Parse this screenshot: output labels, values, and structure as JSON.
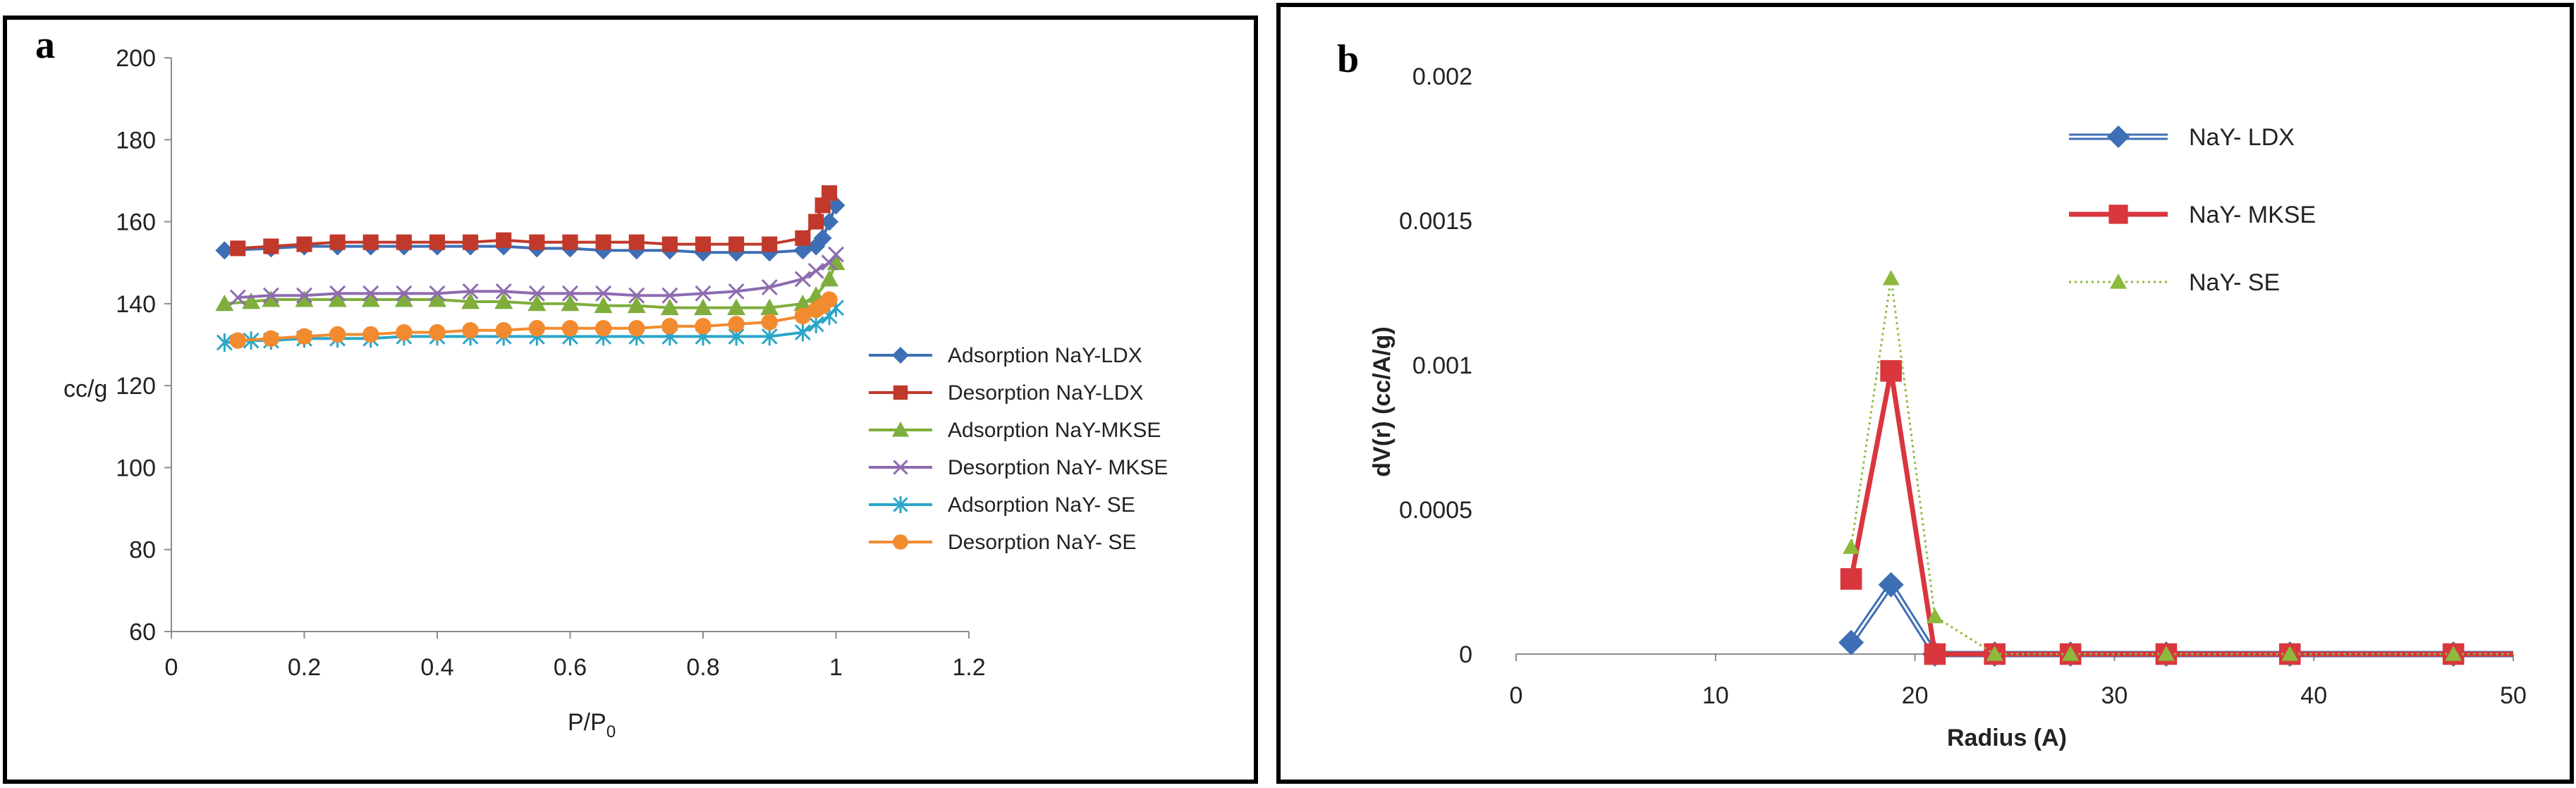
{
  "chart_data": [
    {
      "panel": "a",
      "type": "line",
      "title": "",
      "xlabel": "P/P",
      "xlabel_sub": "0",
      "ylabel": "cc/g",
      "xlim": [
        0,
        1.2
      ],
      "ylim": [
        60,
        200
      ],
      "xticks": [
        "0",
        "0.2",
        "0.4",
        "0.6",
        "0.8",
        "1",
        "1.2"
      ],
      "yticks": [
        "60",
        "80",
        "100",
        "120",
        "140",
        "160",
        "180",
        "200"
      ],
      "legend": "right",
      "series": [
        {
          "name": "Adsorption NaY-LDX",
          "color": "#3e6fb5",
          "marker": "diamond",
          "x": [
            0.08,
            0.15,
            0.2,
            0.25,
            0.3,
            0.35,
            0.4,
            0.45,
            0.5,
            0.55,
            0.6,
            0.65,
            0.7,
            0.75,
            0.8,
            0.85,
            0.9,
            0.95,
            0.97,
            0.98,
            0.99,
            1.0
          ],
          "y": [
            153,
            153.5,
            154,
            154,
            154,
            154,
            154,
            154,
            154,
            153.5,
            153.5,
            153,
            153,
            153,
            152.5,
            152.5,
            152.5,
            153,
            154,
            156,
            160,
            164
          ]
        },
        {
          "name": "Desorption NaY-LDX",
          "color": "#c0392b",
          "marker": "square",
          "x": [
            0.1,
            0.15,
            0.2,
            0.25,
            0.3,
            0.35,
            0.4,
            0.45,
            0.5,
            0.55,
            0.6,
            0.65,
            0.7,
            0.75,
            0.8,
            0.85,
            0.9,
            0.95,
            0.97,
            0.98,
            0.99
          ],
          "y": [
            153.5,
            154,
            154.5,
            155,
            155,
            155,
            155,
            155,
            155.5,
            155,
            155,
            155,
            155,
            154.5,
            154.5,
            154.5,
            154.5,
            156,
            160,
            164,
            167
          ]
        },
        {
          "name": "Adsorption NaY-MKSE",
          "color": "#7fae3c",
          "marker": "triangle",
          "x": [
            0.08,
            0.12,
            0.15,
            0.2,
            0.25,
            0.3,
            0.35,
            0.4,
            0.45,
            0.5,
            0.55,
            0.6,
            0.65,
            0.7,
            0.75,
            0.8,
            0.85,
            0.9,
            0.95,
            0.97,
            0.99,
            1.0
          ],
          "y": [
            140,
            140.5,
            141,
            141,
            141,
            141,
            141,
            141,
            140.5,
            140.5,
            140,
            140,
            139.5,
            139.5,
            139,
            139,
            139,
            139,
            140,
            142,
            146,
            150
          ]
        },
        {
          "name": "Desorption NaY- MKSE",
          "color": "#8e6bb0",
          "marker": "x",
          "x": [
            0.1,
            0.15,
            0.2,
            0.25,
            0.3,
            0.35,
            0.4,
            0.45,
            0.5,
            0.55,
            0.6,
            0.65,
            0.7,
            0.75,
            0.8,
            0.85,
            0.9,
            0.95,
            0.97,
            0.99,
            1.0
          ],
          "y": [
            141.5,
            142,
            142,
            142.5,
            142.5,
            142.5,
            142.5,
            143,
            143,
            142.5,
            142.5,
            142.5,
            142,
            142,
            142.5,
            143,
            144,
            146,
            148,
            150,
            152
          ]
        },
        {
          "name": "Adsorption NaY- SE",
          "color": "#2ba6c8",
          "marker": "star",
          "x": [
            0.08,
            0.12,
            0.15,
            0.2,
            0.25,
            0.3,
            0.35,
            0.4,
            0.45,
            0.5,
            0.55,
            0.6,
            0.65,
            0.7,
            0.75,
            0.8,
            0.85,
            0.9,
            0.95,
            0.97,
            0.99,
            1.0
          ],
          "y": [
            130.5,
            131,
            131,
            131.5,
            131.5,
            131.5,
            132,
            132,
            132,
            132,
            132,
            132,
            132,
            132,
            132,
            132,
            132,
            132,
            133,
            135,
            137,
            139
          ]
        },
        {
          "name": "Desorption NaY- SE",
          "color": "#f28b30",
          "marker": "circle",
          "x": [
            0.1,
            0.15,
            0.2,
            0.25,
            0.3,
            0.35,
            0.4,
            0.45,
            0.5,
            0.55,
            0.6,
            0.65,
            0.7,
            0.75,
            0.8,
            0.85,
            0.9,
            0.95,
            0.97,
            0.98,
            0.99
          ],
          "y": [
            131,
            131.5,
            132,
            132.5,
            132.5,
            133,
            133,
            133.5,
            133.5,
            134,
            134,
            134,
            134,
            134.5,
            134.5,
            135,
            135.5,
            137,
            138.5,
            139.5,
            141
          ]
        }
      ]
    },
    {
      "panel": "b",
      "type": "line",
      "title": "",
      "xlabel": "Radius (A)",
      "ylabel": "dV(r) (cc/A/g)",
      "xlim": [
        0,
        50
      ],
      "ylim": [
        0,
        0.002
      ],
      "xticks": [
        "0",
        "10",
        "20",
        "30",
        "40",
        "50"
      ],
      "yticks": [
        "0",
        "0.0005",
        "0.001",
        "0.0015",
        "0.002"
      ],
      "legend": "top-right",
      "series": [
        {
          "name": "NaY- LDX",
          "color": "#3e6fb5",
          "marker": "diamond",
          "style": "double",
          "x": [
            16.8,
            18.8,
            21.0,
            24.0,
            27.8,
            32.6,
            38.8,
            47.0,
            50.0
          ],
          "y": [
            4e-05,
            0.00024,
            0.0,
            0.0,
            0.0,
            0.0,
            0.0,
            0.0,
            0.0
          ]
        },
        {
          "name": "NaY- MKSE",
          "color": "#d9363e",
          "marker": "square",
          "style": "solid",
          "x": [
            16.8,
            18.8,
            21.0,
            24.0,
            27.8,
            32.6,
            38.8,
            47.0,
            50.0
          ],
          "y": [
            0.00026,
            0.00098,
            0.0,
            0.0,
            0.0,
            0.0,
            0.0,
            0.0,
            0.0
          ]
        },
        {
          "name": "NaY- SE",
          "color": "#8db93c",
          "marker": "triangle",
          "style": "dotted",
          "x": [
            16.8,
            18.8,
            21.0,
            24.0,
            27.8,
            32.6,
            38.8,
            47.0,
            50.0
          ],
          "y": [
            0.00037,
            0.0013,
            0.00013,
            0.0,
            0.0,
            0.0,
            0.0,
            0.0,
            0.0
          ]
        }
      ]
    }
  ],
  "panels": {
    "a": {
      "label": "a"
    },
    "b": {
      "label": "b"
    }
  }
}
